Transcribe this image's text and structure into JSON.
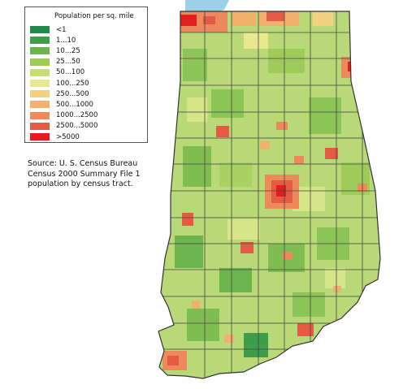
{
  "legend": {
    "title": "Population per sq. mile",
    "items": [
      {
        "label": "<1",
        "color": "#1f8a4c"
      },
      {
        "label": "1...10",
        "color": "#3e9e49"
      },
      {
        "label": "10...25",
        "color": "#6cb54e"
      },
      {
        "label": "25...50",
        "color": "#9fcb5a"
      },
      {
        "label": "50...100",
        "color": "#c6df74"
      },
      {
        "label": "100...250",
        "color": "#e8e98e"
      },
      {
        "label": "250...500",
        "color": "#f4d284"
      },
      {
        "label": "500...1000",
        "color": "#f1b16d"
      },
      {
        "label": "1000...2500",
        "color": "#ec8a5c"
      },
      {
        "label": "2500...5000",
        "color": "#e45a45"
      },
      {
        "label": ">5000",
        "color": "#e21e1e"
      }
    ]
  },
  "source": {
    "line1": "Source: U. S. Census Bureau",
    "line2": "Census 2000 Summary File 1",
    "line3": "population by census tract."
  },
  "map": {
    "state_fill": "#b9d877",
    "lake_color": "#9bd0e6",
    "border_color": "#333333",
    "urban_color": "#e45a45"
  }
}
